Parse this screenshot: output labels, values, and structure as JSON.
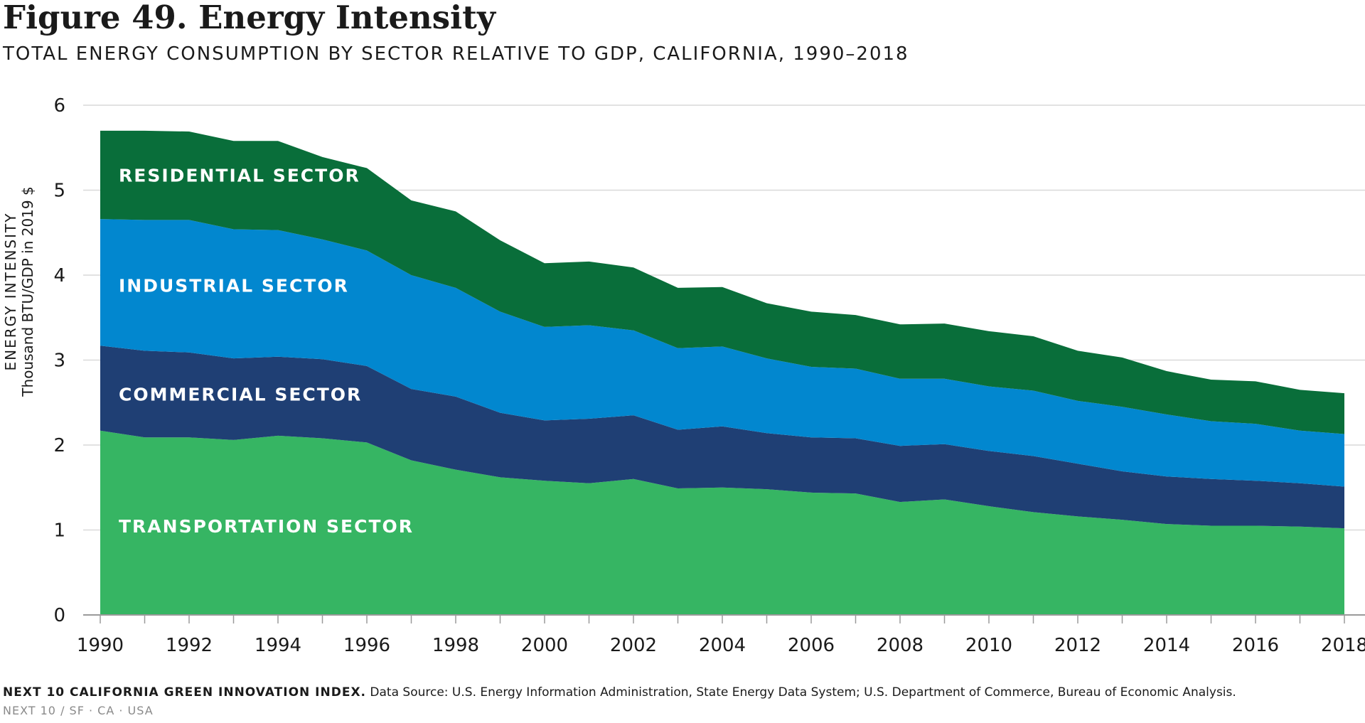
{
  "figure": {
    "title": "Figure 49. Energy Intensity",
    "subtitle": "TOTAL ENERGY CONSUMPTION BY SECTOR RELATIVE TO GDP, CALIFORNIA, 1990–2018"
  },
  "chart_data": {
    "type": "area",
    "stacked": true,
    "title": "Figure 49. Energy Intensity",
    "subtitle": "TOTAL ENERGY CONSUMPTION BY SECTOR RELATIVE TO GDP, CALIFORNIA, 1990–2018",
    "ylabel": "ENERGY INTENSITY",
    "ylabel_sub": "Thousand BTU/GDP in 2019 $",
    "xlabel": "",
    "ylim": [
      0,
      6
    ],
    "xlim": [
      1990,
      2018
    ],
    "yticks": [
      0,
      1,
      2,
      3,
      4,
      5,
      6
    ],
    "xticks": [
      1990,
      1992,
      1994,
      1996,
      1998,
      2000,
      2002,
      2004,
      2006,
      2008,
      2010,
      2012,
      2014,
      2016,
      2018
    ],
    "grid": "horizontal",
    "x": [
      1990,
      1991,
      1992,
      1993,
      1994,
      1995,
      1996,
      1997,
      1998,
      1999,
      2000,
      2001,
      2002,
      2003,
      2004,
      2005,
      2006,
      2007,
      2008,
      2009,
      2010,
      2011,
      2012,
      2013,
      2014,
      2015,
      2016,
      2017,
      2018
    ],
    "series": [
      {
        "name": "TRANSPORTATION SECTOR",
        "color": "#36b563",
        "values": [
          2.17,
          2.09,
          2.09,
          2.06,
          2.11,
          2.08,
          2.03,
          1.82,
          1.71,
          1.62,
          1.58,
          1.55,
          1.6,
          1.49,
          1.5,
          1.48,
          1.44,
          1.43,
          1.33,
          1.36,
          1.28,
          1.21,
          1.16,
          1.12,
          1.07,
          1.05,
          1.05,
          1.04,
          1.02
        ]
      },
      {
        "name": "COMMERCIAL SECTOR",
        "color": "#1f3f74",
        "values": [
          1.0,
          1.02,
          1.0,
          0.96,
          0.93,
          0.93,
          0.9,
          0.84,
          0.86,
          0.76,
          0.71,
          0.76,
          0.75,
          0.69,
          0.72,
          0.66,
          0.65,
          0.65,
          0.66,
          0.65,
          0.65,
          0.66,
          0.62,
          0.57,
          0.56,
          0.55,
          0.53,
          0.51,
          0.49
        ]
      },
      {
        "name": "INDUSTRIAL SECTOR",
        "color": "#0287cf",
        "values": [
          1.49,
          1.54,
          1.56,
          1.52,
          1.49,
          1.41,
          1.36,
          1.34,
          1.28,
          1.19,
          1.1,
          1.1,
          1.0,
          0.96,
          0.94,
          0.88,
          0.83,
          0.82,
          0.79,
          0.77,
          0.76,
          0.77,
          0.74,
          0.76,
          0.73,
          0.68,
          0.67,
          0.62,
          0.62
        ]
      },
      {
        "name": "RESIDENTIAL SECTOR",
        "color": "#096e3a",
        "values": [
          1.04,
          1.05,
          1.04,
          1.04,
          1.05,
          0.97,
          0.97,
          0.88,
          0.9,
          0.84,
          0.75,
          0.75,
          0.74,
          0.71,
          0.7,
          0.65,
          0.65,
          0.63,
          0.64,
          0.65,
          0.65,
          0.64,
          0.59,
          0.58,
          0.51,
          0.49,
          0.5,
          0.48,
          0.48
        ]
      }
    ]
  },
  "source": {
    "org": "NEXT 10 CALIFORNIA GREEN INNOVATION INDEX.",
    "text": "Data Source: U.S. Energy Information Administration, State Energy Data System; U.S. Department of Commerce, Bureau of Economic Analysis."
  },
  "footer": "NEXT 10  /  SF · CA · USA"
}
